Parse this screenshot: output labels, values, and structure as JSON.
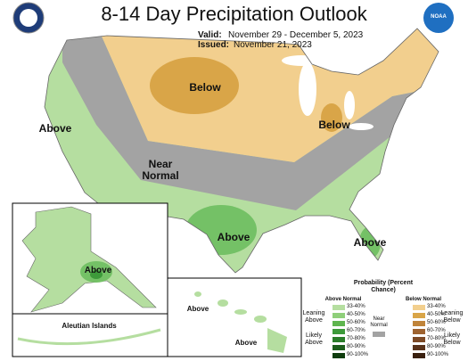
{
  "header": {
    "title": "8-14 Day Precipitation Outlook",
    "valid_label": "Valid:",
    "valid": "November 29 - December 5, 2023",
    "issued_label": "Issued:",
    "issued": "November 21, 2023",
    "logo_right": "NOAA"
  },
  "map_labels": [
    "Below",
    "Below",
    "Above",
    "Near Normal",
    "Above",
    "Above"
  ],
  "alaska": {
    "label": "Above",
    "aleutian": "Aleutian Islands"
  },
  "hawaii": {
    "labels": [
      "Above",
      "Above"
    ]
  },
  "legend": {
    "title": "Probability (Percent Chance)",
    "above_header": "Above Normal",
    "below_header": "Below Normal",
    "above_bins": [
      "33-40%",
      "40-50%",
      "50-60%",
      "60-70%",
      "70-80%",
      "80-90%",
      "90-100%"
    ],
    "below_bins": [
      "33-40%",
      "40-50%",
      "50-60%",
      "60-70%",
      "70-80%",
      "80-90%",
      "90-100%"
    ],
    "leaning_above": "Leaning Above",
    "likely_above": "Likely Above",
    "near_normal": "Near Normal",
    "leaning_below": "Leaning Below",
    "likely_below": "Likely Below"
  }
}
